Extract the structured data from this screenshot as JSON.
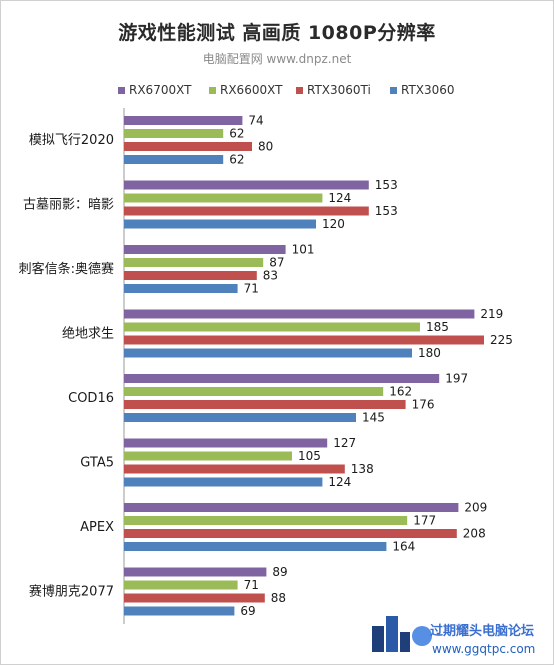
{
  "chart_data": {
    "type": "bar",
    "orientation": "horizontal",
    "title": "游戏性能测试 高画质 1080P分辨率",
    "subtitle": "电脑配置网 www.dnpz.net",
    "categories": [
      "模拟飞行2020",
      "古墓丽影：暗影",
      "刺客信条:奥德赛",
      "绝地求生",
      "COD16",
      "GTA5",
      "APEX",
      "赛博朋克2077"
    ],
    "series": [
      {
        "name": "RX6700XT",
        "color": "#8064a2",
        "values": [
          74,
          153,
          101,
          219,
          197,
          127,
          209,
          89
        ]
      },
      {
        "name": "RX6600XT",
        "color": "#9bbb59",
        "values": [
          62,
          124,
          87,
          185,
          162,
          105,
          177,
          71
        ]
      },
      {
        "name": "RTX3060Ti",
        "color": "#c0504d",
        "values": [
          80,
          153,
          83,
          225,
          176,
          138,
          208,
          88
        ]
      },
      {
        "name": "RTX3060",
        "color": "#4f81bd",
        "values": [
          62,
          120,
          71,
          180,
          145,
          124,
          164,
          69
        ]
      }
    ],
    "xlim": [
      0,
      240
    ],
    "grid": false,
    "legend_position": "top"
  },
  "watermark": {
    "text": "过期耀头电脑论坛",
    "url": "www.ggqtpc.com"
  }
}
